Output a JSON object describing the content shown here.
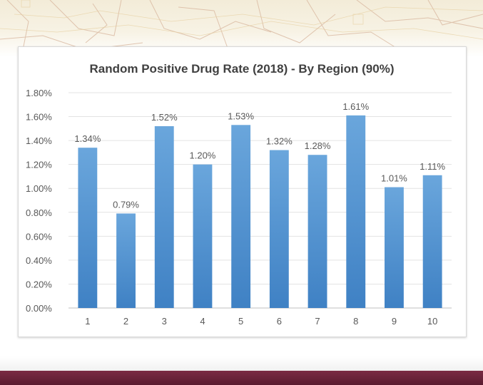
{
  "chart_data": {
    "type": "bar",
    "title": "Random Positive Drug Rate (2018) - By Region (90%)",
    "xlabel": "",
    "ylabel": "",
    "categories": [
      "1",
      "2",
      "3",
      "4",
      "5",
      "6",
      "7",
      "8",
      "9",
      "10"
    ],
    "values": [
      1.34,
      0.79,
      1.52,
      1.2,
      1.53,
      1.32,
      1.28,
      1.61,
      1.01,
      1.11
    ],
    "data_labels": [
      "1.34%",
      "0.79%",
      "1.52%",
      "1.20%",
      "1.53%",
      "1.32%",
      "1.28%",
      "1.61%",
      "1.01%",
      "1.11%"
    ],
    "ylim": [
      0,
      1.8
    ],
    "yticks": [
      0,
      0.2,
      0.4,
      0.6,
      0.8,
      1.0,
      1.2,
      1.4,
      1.6,
      1.8
    ],
    "ytick_labels": [
      "0.00%",
      "0.20%",
      "0.40%",
      "0.60%",
      "0.80%",
      "1.00%",
      "1.20%",
      "1.40%",
      "1.60%",
      "1.80%"
    ],
    "grid": true,
    "legend": "none",
    "bar_color": "#5b9bd5"
  },
  "theme": {
    "bottom_bar_color": "#6a2238",
    "title_color": "#404040",
    "label_color": "#595959"
  }
}
